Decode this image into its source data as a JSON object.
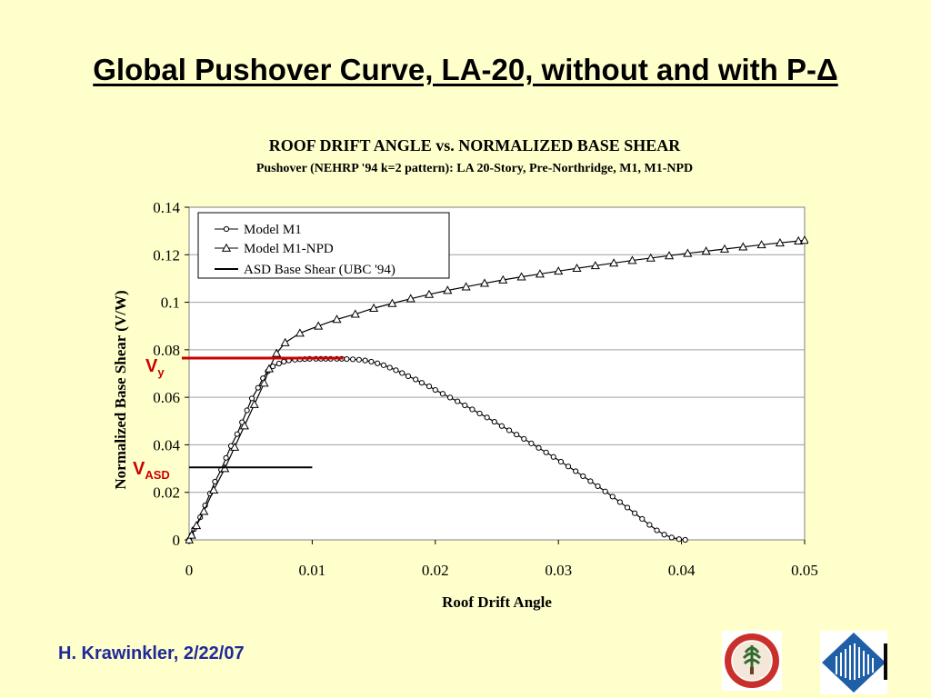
{
  "slide": {
    "title": "Global Pushover Curve, LA-20, without and with P-Δ",
    "footer": "H. Krawinkler, 2/22/07"
  },
  "logos": [
    {
      "name": "stanford-seal",
      "icon": "stanford-seal-icon"
    },
    {
      "name": "blume-center-logo",
      "icon": "blume-emblem-icon"
    }
  ],
  "chart_data": {
    "type": "line",
    "title": "ROOF DRIFT ANGLE vs. NORMALIZED BASE SHEAR",
    "subtitle": "Pushover (NEHRP '94 k=2 pattern): LA 20-Story, Pre-Northridge, M1, M1-NPD",
    "xlabel": "Roof Drift Angle",
    "ylabel": "Normalized Base Shear (V/W)",
    "xlim": [
      0,
      0.05
    ],
    "ylim": [
      0,
      0.14
    ],
    "xticks": [
      "0",
      "0.01",
      "0.02",
      "0.03",
      "0.04",
      "0.05"
    ],
    "yticks": [
      "0",
      "0.02",
      "0.04",
      "0.06",
      "0.08",
      "0.1",
      "0.12",
      "0.14"
    ],
    "grid": "horizontal",
    "legend_position": "top-left",
    "series": [
      {
        "name": "Model M1",
        "marker": "circle",
        "color": "#000000",
        "x": [
          0,
          0.0002,
          0.0004,
          0.0009,
          0.0013,
          0.0017,
          0.0021,
          0.0026,
          0.003,
          0.0034,
          0.0039,
          0.0043,
          0.0047,
          0.0051,
          0.0056,
          0.006,
          0.0064,
          0.0068,
          0.0073,
          0.0077,
          0.0081,
          0.0086,
          0.009,
          0.0094,
          0.0098,
          0.0103,
          0.0107,
          0.0111,
          0.0115,
          0.012,
          0.0124,
          0.0128,
          0.0133,
          0.0138,
          0.0143,
          0.0148,
          0.0153,
          0.0158,
          0.0163,
          0.0168,
          0.0173,
          0.0178,
          0.0184,
          0.0189,
          0.0195,
          0.02,
          0.0206,
          0.0212,
          0.0218,
          0.0224,
          0.023,
          0.0236,
          0.0242,
          0.0248,
          0.0254,
          0.026,
          0.0266,
          0.0272,
          0.0278,
          0.0284,
          0.029,
          0.0296,
          0.0302,
          0.0308,
          0.0314,
          0.032,
          0.0326,
          0.0332,
          0.0338,
          0.0344,
          0.035,
          0.0356,
          0.0362,
          0.0368,
          0.0374,
          0.038,
          0.0386,
          0.0392,
          0.0398,
          0.0403
        ],
        "y": [
          0,
          0.002,
          0.0045,
          0.0095,
          0.0145,
          0.0195,
          0.0245,
          0.0295,
          0.0345,
          0.0395,
          0.0445,
          0.0495,
          0.0545,
          0.0595,
          0.064,
          0.068,
          0.071,
          0.073,
          0.0742,
          0.075,
          0.0755,
          0.0758,
          0.076,
          0.0761,
          0.0762,
          0.0762,
          0.0762,
          0.0762,
          0.0762,
          0.0762,
          0.0762,
          0.0761,
          0.076,
          0.0758,
          0.0755,
          0.075,
          0.0743,
          0.0735,
          0.0725,
          0.0714,
          0.0702,
          0.0689,
          0.0675,
          0.0661,
          0.0646,
          0.0631,
          0.0615,
          0.0599,
          0.0583,
          0.0566,
          0.0549,
          0.0532,
          0.0515,
          0.0497,
          0.0479,
          0.0461,
          0.0443,
          0.0425,
          0.0406,
          0.0387,
          0.0368,
          0.0349,
          0.0329,
          0.0309,
          0.0289,
          0.0268,
          0.0247,
          0.0226,
          0.0204,
          0.0182,
          0.0159,
          0.0136,
          0.0112,
          0.0088,
          0.0063,
          0.004,
          0.0022,
          0.001,
          0.0003,
          0.0
        ]
      },
      {
        "name": "Model M1-NPD",
        "marker": "triangle",
        "color": "#000000",
        "x": [
          0,
          0.0002,
          0.0006,
          0.0012,
          0.002,
          0.0029,
          0.0037,
          0.0045,
          0.0053,
          0.0061,
          0.0065,
          0.0071,
          0.0078,
          0.009,
          0.0105,
          0.012,
          0.0135,
          0.015,
          0.0165,
          0.018,
          0.0195,
          0.021,
          0.0225,
          0.024,
          0.0255,
          0.027,
          0.0285,
          0.03,
          0.0315,
          0.033,
          0.0345,
          0.036,
          0.0375,
          0.039,
          0.0405,
          0.042,
          0.0435,
          0.045,
          0.0465,
          0.048,
          0.0495,
          0.05
        ],
        "y": [
          0,
          0.002,
          0.006,
          0.012,
          0.021,
          0.03,
          0.039,
          0.048,
          0.057,
          0.066,
          0.072,
          0.0785,
          0.083,
          0.087,
          0.09,
          0.0928,
          0.095,
          0.0975,
          0.0995,
          0.1015,
          0.1033,
          0.105,
          0.1065,
          0.108,
          0.1094,
          0.1107,
          0.1119,
          0.1131,
          0.1143,
          0.1154,
          0.1165,
          0.1176,
          0.1186,
          0.1196,
          0.1206,
          0.1215,
          0.1224,
          0.1233,
          0.1242,
          0.125,
          0.1258,
          0.1261
        ]
      },
      {
        "name": "ASD Base Shear (UBC '94)",
        "marker": "none",
        "color": "#000000",
        "x": [
          0,
          0.01
        ],
        "y": [
          0.0305,
          0.0305
        ]
      }
    ],
    "annotations": [
      {
        "label": "V",
        "subscript": "y",
        "color": "#cc0000",
        "y": 0.0765,
        "x_end": 0.0125
      },
      {
        "label": "V",
        "subscript": "ASD",
        "color": "#cc0000",
        "y": 0.0305
      }
    ]
  }
}
